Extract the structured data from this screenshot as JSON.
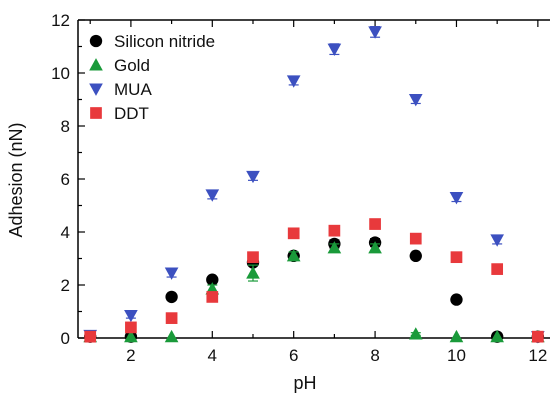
{
  "chart_data": {
    "type": "scatter",
    "xlabel": "pH",
    "ylabel": "Adhesion (nN)",
    "xlim": [
      0.7,
      12.2
    ],
    "ylim": [
      0,
      12
    ],
    "xticks": [
      2,
      4,
      6,
      8,
      10,
      12
    ],
    "yticks": [
      0,
      2,
      4,
      6,
      8,
      10,
      12
    ],
    "legend_position": "top-left",
    "grid": false,
    "series": [
      {
        "name": "Silicon nitride",
        "marker": "circle",
        "color": "#000000",
        "x": [
          1,
          2,
          3,
          4,
          5,
          6,
          7,
          8,
          9,
          10,
          11,
          12
        ],
        "y": [
          0.05,
          0.05,
          1.55,
          2.2,
          2.85,
          3.1,
          3.55,
          3.6,
          3.1,
          1.45,
          0.05,
          0.05
        ],
        "yerr": [
          0.05,
          0.05,
          0.1,
          0.1,
          0.1,
          0.1,
          0.15,
          0.15,
          0.1,
          0.1,
          0.05,
          0.05
        ]
      },
      {
        "name": "Gold",
        "marker": "triangle-up",
        "color": "#1a9a3a",
        "x": [
          1,
          2,
          3,
          4,
          5,
          6,
          7,
          8,
          9,
          10,
          11,
          12
        ],
        "y": [
          0.05,
          0.05,
          0.05,
          1.85,
          2.45,
          3.1,
          3.4,
          3.4,
          0.15,
          0.05,
          0.05,
          0.05
        ],
        "yerr": [
          0.02,
          0.02,
          0.02,
          0.15,
          0.3,
          0.15,
          0.15,
          0.15,
          0.05,
          0.02,
          0.02,
          0.02
        ]
      },
      {
        "name": "MUA",
        "marker": "triangle-down",
        "color": "#3c50c0",
        "x": [
          1,
          2,
          3,
          4,
          5,
          6,
          7,
          8,
          9,
          10,
          11,
          12
        ],
        "y": [
          0.1,
          0.85,
          2.45,
          5.4,
          6.1,
          9.7,
          10.9,
          11.55,
          9.0,
          5.3,
          3.7,
          0.05
        ],
        "yerr": [
          0.05,
          0.1,
          0.15,
          0.15,
          0.15,
          0.15,
          0.2,
          0.2,
          0.15,
          0.15,
          0.15,
          0.05
        ]
      },
      {
        "name": "DDT",
        "marker": "square",
        "color": "#e8393c",
        "x": [
          1,
          2,
          3,
          4,
          5,
          6,
          7,
          8,
          9,
          10,
          11,
          12
        ],
        "y": [
          0.05,
          0.4,
          0.75,
          1.55,
          3.05,
          3.95,
          4.05,
          4.3,
          3.75,
          3.05,
          2.6,
          0.05
        ],
        "yerr": [
          0.02,
          0.05,
          0.05,
          0.1,
          0.1,
          0.1,
          0.1,
          0.1,
          0.1,
          0.1,
          0.1,
          0.02
        ]
      }
    ]
  }
}
